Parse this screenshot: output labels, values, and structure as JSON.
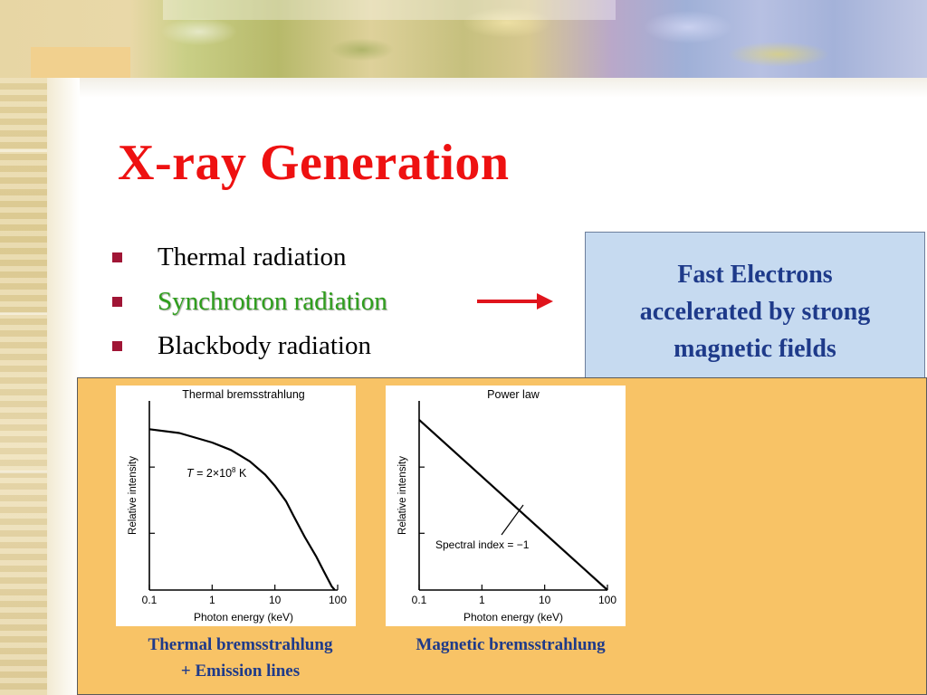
{
  "slide": {
    "title": "X-ray Generation",
    "bullets": [
      {
        "label": "Thermal radiation",
        "highlight": false
      },
      {
        "label": "Synchrotron radiation",
        "highlight": true
      },
      {
        "label": "Blackbody radiation",
        "highlight": false
      }
    ],
    "callout": "Fast Electrons\naccelerated by strong\nmagnetic fields",
    "captions": {
      "left": "Thermal bremsstrahlung\n+ Emission lines",
      "right": "Magnetic bremsstrahlung"
    },
    "colors": {
      "title": "#ee1111",
      "bullet_marker": "#a01535",
      "highlight_text": "#2e9e1c",
      "callout_text": "#1e3a8a",
      "callout_bg": "#c6daf0",
      "panel_bg": "#f8c366",
      "arrow": "#e0141c"
    }
  },
  "chart_data": [
    {
      "type": "line",
      "title": "Thermal bremsstrahlung",
      "xlabel": "Photon energy (keV)",
      "ylabel": "Relative intensity",
      "xscale": "log",
      "xlim": [
        0.1,
        100
      ],
      "xticks": [
        "0.1",
        "1",
        "10",
        "100"
      ],
      "y_tick_labels": "none",
      "annotation": "T = 2×10^8 K",
      "annotation_parts": {
        "prefix": "T",
        "middle": " = 2×10",
        "exp": "8",
        "suffix": " K"
      },
      "series": [
        {
          "x": [
            0.1,
            0.3,
            1,
            2,
            4,
            7,
            10,
            15,
            20,
            30,
            45,
            60,
            80,
            90
          ],
          "y": [
            0.85,
            0.83,
            0.78,
            0.74,
            0.68,
            0.61,
            0.55,
            0.47,
            0.39,
            0.28,
            0.18,
            0.1,
            0.02,
            0.0
          ]
        }
      ]
    },
    {
      "type": "line",
      "title": "Power law",
      "xlabel": "Photon energy (keV)",
      "ylabel": "Relative intensity",
      "xscale": "log",
      "xlim": [
        0.1,
        100
      ],
      "xticks": [
        "0.1",
        "1",
        "10",
        "100"
      ],
      "y_tick_labels": "none",
      "annotation": "Spectral index = −1",
      "series": [
        {
          "x": [
            0.1,
            100
          ],
          "y": [
            0.9,
            0.0
          ]
        }
      ]
    }
  ]
}
